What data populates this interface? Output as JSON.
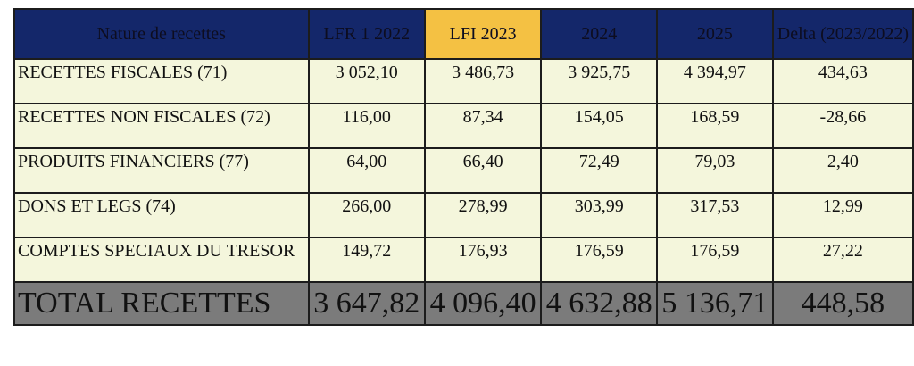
{
  "table": {
    "header": [
      "Nature de recettes",
      "LFR 1 2022",
      "LFI 2023",
      "2024",
      "2025",
      "Delta (2023/2022)"
    ],
    "rows": [
      [
        "RECETTES FISCALES (71)",
        "3 052,10",
        "3 486,73",
        "3 925,75",
        "4 394,97",
        "434,63"
      ],
      [
        "RECETTES NON FISCALES (72)",
        "116,00",
        "87,34",
        "154,05",
        "168,59",
        "-28,66"
      ],
      [
        "PRODUITS FINANCIERS (77)",
        "64,00",
        "66,40",
        "72,49",
        "79,03",
        "2,40"
      ],
      [
        "DONS ET LEGS (74)",
        "266,00",
        "278,99",
        "303,99",
        "317,53",
        "12,99"
      ],
      [
        "COMPTES SPECIAUX DU TRESOR",
        "149,72",
        "176,93",
        "176,59",
        "176,59",
        "27,22"
      ]
    ],
    "total": [
      "TOTAL RECETTES",
      "3 647,82",
      "4 096,40",
      "4 632,88",
      "5 136,71",
      "448,58"
    ]
  }
}
